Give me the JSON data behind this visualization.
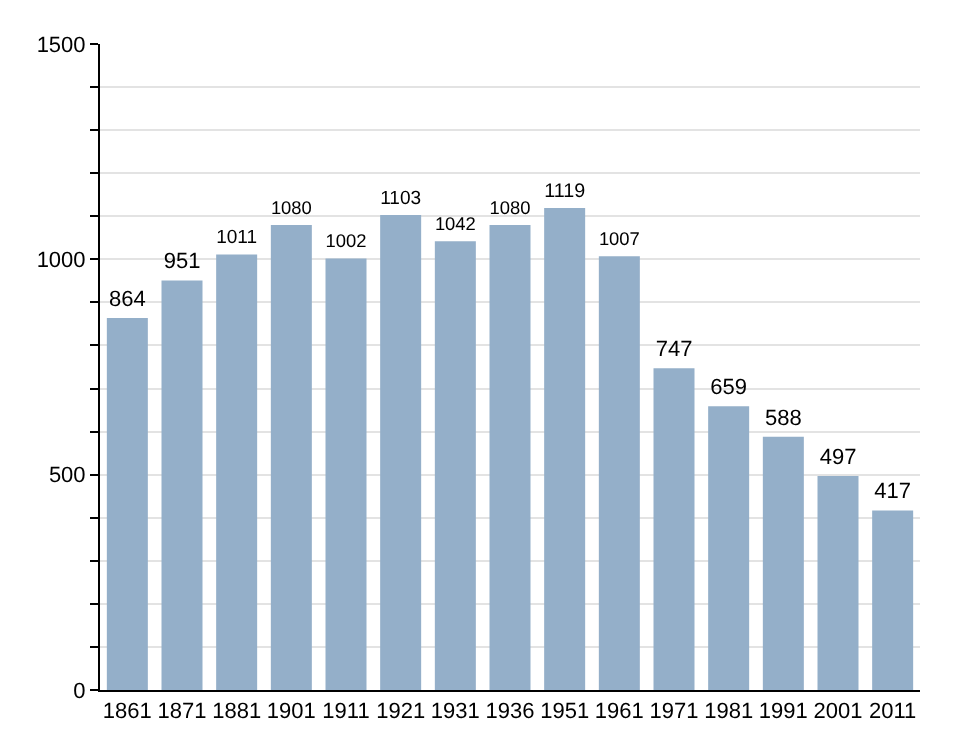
{
  "chart_data": {
    "type": "bar",
    "categories": [
      "1861",
      "1871",
      "1881",
      "1901",
      "1911",
      "1921",
      "1931",
      "1936",
      "1951",
      "1961",
      "1971",
      "1981",
      "1991",
      "2001",
      "2011"
    ],
    "values": [
      864,
      951,
      1011,
      1080,
      1002,
      1103,
      1042,
      1080,
      1119,
      1007,
      747,
      659,
      588,
      497,
      417
    ],
    "color": "#94afc9",
    "ylim": [
      0,
      1500
    ],
    "yticks": [
      0,
      {
        "value": 100,
        "label": null
      },
      {
        "value": 200,
        "label": null
      },
      {
        "value": 300,
        "label": null
      },
      {
        "value": 400,
        "label": null
      },
      500,
      {
        "value": 600,
        "label": null
      },
      {
        "value": 700,
        "label": null
      },
      {
        "value": 800,
        "label": null
      },
      {
        "value": 900,
        "label": null
      },
      1000,
      {
        "value": 1100,
        "label": null
      },
      {
        "value": 1200,
        "label": null
      },
      {
        "value": 1300,
        "label": null
      },
      {
        "value": 1400,
        "label": null
      },
      1500
    ],
    "grid": "y",
    "data_labels": true
  }
}
